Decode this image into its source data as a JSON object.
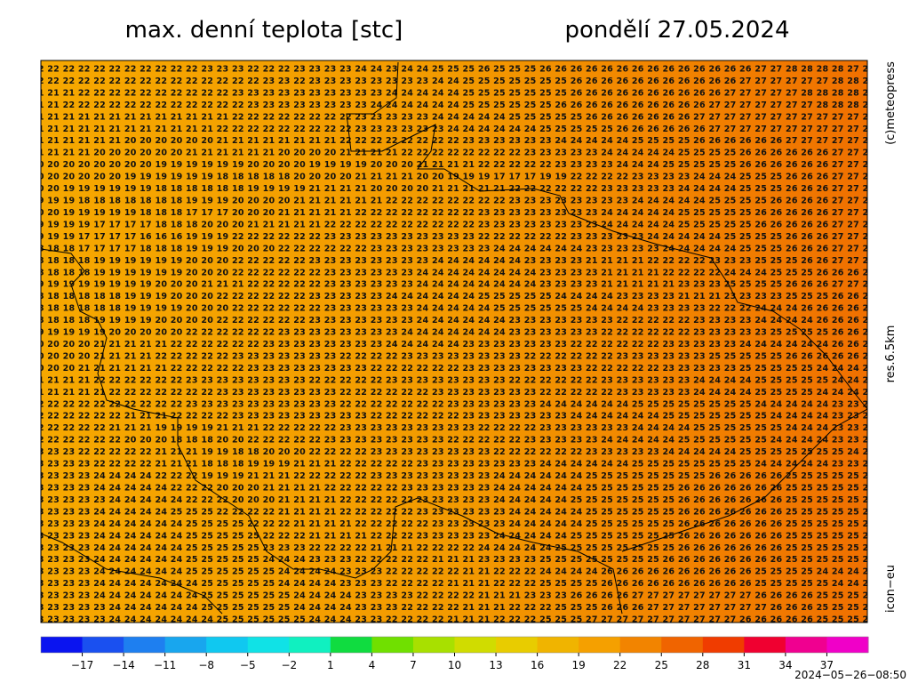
{
  "header": {
    "title": "max. denní teplota [stc]",
    "date": "pondělí 27.05.2024"
  },
  "side": {
    "copyright": "(c)meteopress",
    "resolution": "res.6.5km",
    "model": "icon−eu"
  },
  "footer": {
    "timestamp": "2024−05−26−08:50"
  },
  "map": {
    "rows": [
      "22 22 22 22 22 22 22 22 22 22 22 23 23 23 22 22 22 23 23 23 23 24 24 23 24 24 25 25 25 26 25 25 25 26 26 26 26 26 26 26 26 26 26 26 26 26 26 27 27 28 28 28 28 27 27",
      "22 22 22 22 22 22 22 22 22 22 22 22 22 22 22 23 23 22 23 23 23 23 23 23 23 23 24 24 25 25 25 25 25 25 25 26 26 26 26 26 26 26 26 26 26 26 27 27 27 27 27 27 28 28 28",
      "21 21 21 22 22 22 22 22 22 22 22 22 22 23 23 23 23 23 23 23 23 23 23 24 24 24 24 24 25 25 25 25 25 25 25 26 26 26 26 26 26 26 26 26 26 27 27 27 27 27 28 28 28 28 28",
      "21 21 22 22 22 22 22 22 22 22 22 22 22 22 23 23 23 23 23 23 23 23 24 24 24 24 24 24 25 25 25 25 25 25 26 26 26 26 26 26 26 26 26 26 27 27 27 27 27 27 27 28 28 28 28",
      "21 21 21 21 21 21 21 21 21 21 21 21 21 22 22 22 22 22 22 22 22 23 23 23 23 23 24 24 24 24 24 25 25 25 25 25 26 26 26 26 26 26 26 27 27 27 27 27 27 27 27 27 27 27 27",
      "21 21 21 21 21 21 21 21 21 21 21 21 22 22 22 22 22 22 22 22 22 23 23 23 23 23 23 24 24 24 24 24 24 25 25 25 25 25 26 26 26 26 26 26 27 27 27 27 27 27 27 27 27 27 27",
      "21 21 21 21 21 21 20 20 20 20 20 20 21 21 21 21 21 21 21 21 22 22 22 22 22 22 22 22 23 23 23 23 23 23 24 24 24 24 24 25 25 25 25 26 26 26 26 26 26 27 27 27 27 27 27",
      "21 21 21 21 20 20 20 20 20 20 21 21 21 21 21 21 20 20 20 20 21 21 21 21 22 22 22 22 22 22 22 22 23 23 23 23 23 24 24 24 24 24 25 25 25 25 26 26 26 26 26 26 27 27 27",
      "20 20 20 20 20 20 20 20 19 19 19 19 19 19 20 20 20 20 19 19 19 19 20 20 20 21 21 21 21 22 22 22 22 22 23 23 23 23 24 24 24 25 25 25 25 25 26 26 26 26 26 26 27 27 27",
      "20 20 20 20 20 20 19 19 19 19 19 19 18 18 18 18 18 20 20 20 20 21 21 21 21 20 20 19 19 19 17 17 17 19 19 22 22 22 22 23 23 23 23 24 24 24 25 25 25 26 26 26 27 27 27",
      "20 20 19 19 19 19 19 19 18 18 18 18 18 18 19 19 19 19 21 21 21 21 20 20 20 20 21 21 21 21 21 22 22 22 22 22 22 23 23 23 23 23 24 24 24 24 25 25 25 26 26 26 27 27 27",
      "19 19 19 18 18 18 18 18 18 18 19 19 19 20 20 20 20 21 21 21 21 21 21 22 22 22 22 22 22 22 22 23 23 23 23 23 23 23 23 24 24 24 24 24 25 25 25 25 26 26 26 26 27 27 27",
      "20 20 19 19 19 19 19 18 18 18 17 17 17 20 20 20 21 21 21 21 21 22 22 22 22 22 22 22 22 23 23 23 23 23 23 23 23 24 24 24 24 24 25 25 25 25 25 26 26 26 26 26 27 27 27",
      "19 19 19 19 17 17 17 17 18 18 18 20 20 20 21 21 21 21 21 22 22 22 22 22 22 22 22 22 22 23 23 23 23 23 23 23 23 24 24 24 24 24 25 25 25 25 25 26 26 26 26 26 27 27 27",
      "19 19 19 17 17 17 17 16 16 16 19 19 19 22 22 22 22 22 22 23 23 23 23 23 23 23 23 23 23 22 22 22 22 22 22 23 23 23 23 23 24 24 24 24 24 25 25 25 25 26 26 26 27 27 27",
      "18 18 18 17 17 17 17 18 18 18 19 19 19 20 20 20 22 22 22 22 22 22 23 23 23 23 23 23 23 23 24 24 24 24 24 24 23 23 23 23 23 24 24 24 24 24 25 25 25 26 26 26 27 27 27",
      "18 18 18 18 19 19 19 19 19 19 20 20 20 22 22 22 22 22 23 23 23 23 23 23 23 23 24 24 24 24 24 24 23 23 23 23 21 21 21 21 22 22 22 22 23 23 23 25 25 25 26 26 27 27 27",
      "18 18 18 18 19 19 19 19 19 19 20 20 20 22 22 22 22 22 22 23 23 23 23 23 23 24 24 24 24 24 24 24 24 23 23 23 23 21 21 21 21 22 22 22 22 24 24 24 25 25 25 26 26 26 26",
      "19 19 19 19 19 19 19 19 20 20 20 21 21 21 22 22 22 22 22 23 23 23 23 23 23 24 24 24 24 24 24 24 24 23 23 23 23 21 21 21 21 21 23 23 23 25 25 25 25 26 26 26 27 27 27",
      "18 18 18 18 18 18 19 19 19 20 20 20 22 22 22 22 22 22 23 23 23 23 23 24 24 24 24 24 24 25 25 25 25 25 24 24 24 24 23 23 23 23 21 21 21 23 23 23 23 25 25 25 26 26 26",
      "18 18 18 18 18 18 19 19 19 19 20 20 20 22 22 22 22 22 22 23 23 23 23 23 23 24 24 24 24 24 25 25 25 25 25 25 24 24 24 24 23 23 23 23 22 22 22 24 24 24 26 26 26 26 26",
      "18 18 18 18 19 19 19 19 20 20 20 20 22 22 22 22 22 22 23 23 23 23 23 23 23 24 24 24 24 24 24 23 23 23 23 23 23 23 22 22 22 22 22 23 23 23 23 24 24 24 24 26 26 26 26",
      "19 19 19 19 19 20 20 20 20 20 22 22 22 22 22 22 23 23 23 23 23 23 23 23 24 24 24 24 24 24 24 23 23 23 23 23 23 22 22 22 22 22 22 23 23 23 23 23 25 25 25 25 26 26 26",
      "20 20 20 20 21 21 21 21 21 22 22 22 22 22 22 23 23 23 23 23 23 23 23 24 24 24 24 24 23 23 23 23 23 23 23 22 22 22 22 22 22 23 23 23 23 23 24 24 24 24 24 24 26 26 26",
      "20 20 20 20 21 21 21 21 22 22 22 22 22 23 23 23 23 23 23 23 22 22 22 22 23 23 23 23 23 23 23 23 22 22 22 22 22 22 23 23 23 23 23 23 25 25 25 25 25 26 26 26 26 26 26",
      "20 20 20 21 21 21 21 21 21 22 22 22 22 22 23 23 23 23 23 23 23 23 22 22 22 22 22 22 23 23 23 23 23 23 23 23 22 22 22 22 22 23 23 23 23 23 25 25 25 25 25 24 24 24 24",
      "21 21 21 21 22 22 22 22 22 22 23 23 23 23 23 23 23 23 22 22 22 22 22 23 23 23 23 23 23 23 23 22 22 22 22 22 22 23 23 23 23 23 23 24 24 24 24 25 25 25 25 25 24 24 24",
      "21 21 21 21 21 22 22 22 22 22 22 22 23 23 23 23 23 23 23 23 22 22 22 22 22 22 23 23 23 23 23 23 23 22 22 22 22 22 23 23 23 23 23 24 24 24 24 25 25 25 25 24 24 24 24",
      "22 22 22 22 22 22 22 22 22 22 23 23 23 23 23 23 23 23 23 23 22 22 22 22 22 22 22 23 23 23 23 23 23 24 24 24 24 24 24 25 25 25 25 25 25 25 25 24 24 24 24 24 23 23 23",
      "22 22 22 22 22 22 21 21 21 22 22 22 22 23 23 23 23 23 23 23 23 23 22 22 22 22 22 22 23 23 23 23 23 23 23 24 24 24 24 24 24 25 25 25 25 25 25 25 24 24 24 24 23 23 23",
      "22 22 22 22 22 21 21 21 19 19 19 19 21 21 21 22 22 22 22 22 23 23 23 23 23 23 23 23 23 22 22 22 22 23 23 23 23 23 23 24 24 24 24 25 25 25 25 25 25 24 24 24 23 23 23",
      "22 22 22 22 22 22 20 20 20 18 18 18 20 20 22 22 22 22 22 23 23 23 23 23 23 23 23 22 22 22 22 22 23 23 23 23 23 24 24 24 24 24 25 25 25 25 25 25 24 24 24 24 23 23 23",
      "23 23 23 22 22 22 22 22 21 21 21 19 19 18 18 20 20 20 22 22 22 22 23 23 23 23 23 23 23 23 22 22 22 22 22 22 23 23 23 23 23 24 24 24 24 24 25 25 25 25 25 25 25 24 24",
      "23 23 23 23 22 22 22 22 21 21 21 18 18 18 19 19 19 21 21 21 22 22 22 22 22 23 23 23 23 23 23 23 23 24 24 24 24 24 24 25 25 25 25 25 25 25 25 24 24 24 24 24 23 23 23",
      "23 23 23 23 24 24 24 24 22 22 22 19 19 19 21 21 21 22 22 22 22 22 23 23 23 23 23 23 23 23 24 24 24 24 24 24 25 25 25 25 25 25 25 25 26 26 26 26 26 25 25 25 25 25 25",
      "23 23 23 23 24 24 24 24 24 22 22 22 20 20 20 21 21 21 21 22 22 22 22 22 23 23 23 23 23 23 24 24 24 24 24 24 25 25 25 25 25 25 26 26 26 26 26 26 26 25 25 25 25 25 25",
      "23 23 23 23 23 24 24 24 24 24 22 22 22 20 20 20 21 21 21 21 22 22 22 22 22 23 23 23 23 23 24 24 24 24 24 25 25 25 25 25 25 25 26 26 26 26 26 26 26 25 25 25 25 25 25",
      "23 23 23 23 24 24 24 24 24 25 25 25 22 22 22 22 21 21 21 21 22 22 22 22 22 23 23 23 23 23 23 24 24 24 24 24 25 25 25 25 25 25 26 26 26 26 26 26 26 25 25 25 25 25 25",
      "23 23 23 23 24 24 24 24 24 24 25 25 25 25 22 22 22 21 21 21 21 22 22 22 22 22 23 23 23 23 23 24 24 24 24 24 25 25 25 25 25 25 26 26 26 26 26 26 26 25 25 25 25 25 25",
      "23 23 23 23 24 24 24 24 24 24 25 25 25 25 25 22 22 22 21 21 21 21 22 22 22 23 23 23 23 23 24 24 24 24 24 25 25 25 25 25 25 25 26 26 26 26 26 26 26 25 25 25 25 25 25",
      "23 23 23 23 24 24 24 24 24 24 25 25 25 25 25 23 23 23 22 22 22 22 21 21 21 22 22 22 22 24 24 24 24 24 25 25 25 25 25 25 25 25 26 26 26 26 26 26 26 25 25 25 25 25 25",
      "23 23 23 23 24 24 24 24 24 24 25 25 25 25 25 24 24 24 23 23 23 22 22 22 22 22 21 21 21 23 23 23 23 25 25 25 25 25 25 25 25 26 26 26 26 26 26 26 26 25 25 25 25 25 25",
      "23 23 23 23 24 24 24 24 24 24 25 25 25 25 25 25 24 24 24 24 23 23 23 22 22 22 22 22 21 21 22 22 22 24 24 24 24 26 26 26 26 26 26 26 26 26 26 25 25 25 25 24 24 24 24",
      "23 23 23 23 24 24 24 24 24 24 24 25 25 25 25 25 24 24 24 24 23 23 23 22 22 22 22 21 21 21 22 22 22 25 25 25 25 26 26 26 26 26 26 26 26 26 26 25 25 25 25 25 24 24 24",
      "23 23 23 23 24 24 24 24 24 24 24 25 25 25 25 25 25 24 24 24 24 23 23 23 23 22 22 22 22 21 21 21 23 23 23 26 26 26 26 27 27 27 27 27 27 27 27 26 26 26 26 25 25 25 25",
      "23 23 23 23 23 24 24 24 24 24 24 25 25 25 25 25 25 24 24 24 24 23 23 23 22 22 22 22 21 21 21 22 22 22 25 25 25 26 26 26 27 27 27 27 27 27 27 27 26 26 26 25 25 25 25",
      "23 23 23 23 23 24 24 24 24 24 24 24 25 25 25 25 25 25 24 24 24 23 23 22 22 22 22 21 21 21 22 22 22 25 25 25 27 27 27 27 27 27 27 27 27 27 26 26 26 26 26 25 25 25 25"
    ]
  },
  "colorbar": {
    "lim": [
      -20,
      40
    ],
    "colors": [
      "#0a14f0",
      "#1a50f0",
      "#1e7ff0",
      "#18a6ee",
      "#10c8f0",
      "#10e2e6",
      "#10f0c0",
      "#10dc40",
      "#70e000",
      "#a8e000",
      "#d0dc00",
      "#e8cc00",
      "#f0b400",
      "#f5a000",
      "#f28400",
      "#f06400",
      "#f03c00",
      "#f00030",
      "#f00090",
      "#f000c8"
    ],
    "ticks": [
      {
        "value": -17,
        "label": "−17"
      },
      {
        "value": -14,
        "label": "−14"
      },
      {
        "value": -11,
        "label": "−11"
      },
      {
        "value": -8,
        "label": "−8"
      },
      {
        "value": -5,
        "label": "−5"
      },
      {
        "value": -2,
        "label": "−2"
      },
      1,
      4,
      7,
      10,
      13,
      16,
      19,
      22,
      25,
      28,
      31,
      34,
      37
    ]
  }
}
